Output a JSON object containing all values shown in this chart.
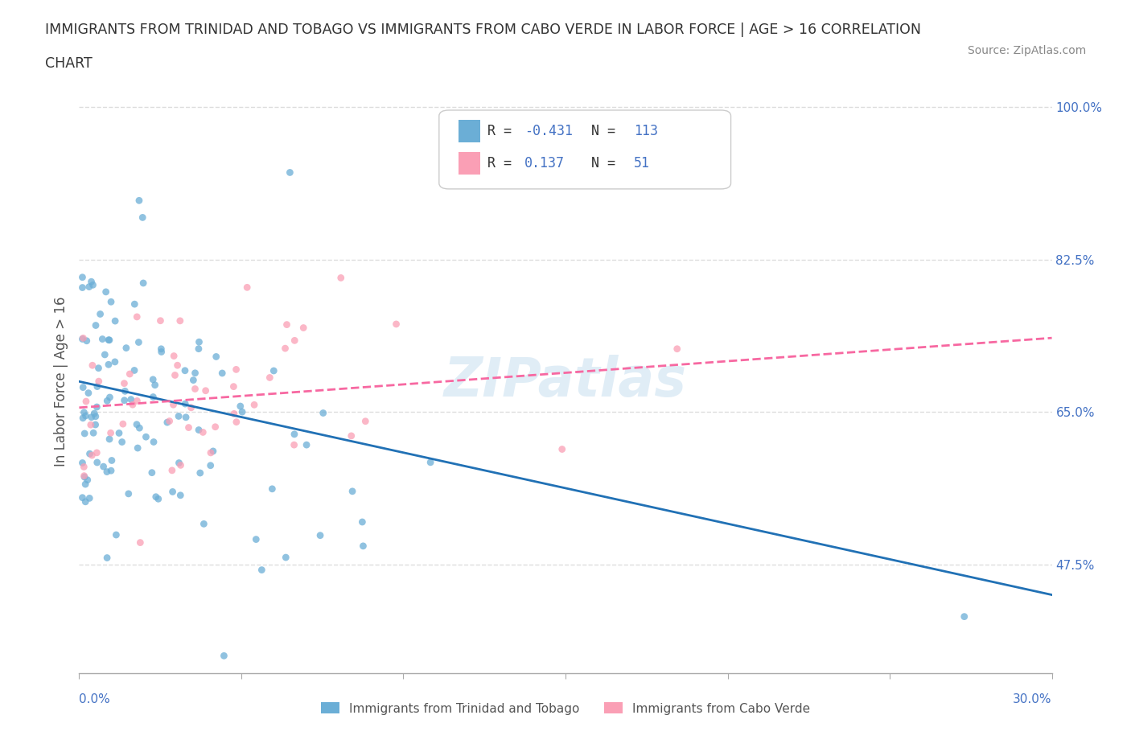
{
  "title_line1": "IMMIGRANTS FROM TRINIDAD AND TOBAGO VS IMMIGRANTS FROM CABO VERDE IN LABOR FORCE | AGE > 16 CORRELATION",
  "title_line2": "CHART",
  "source_text": "Source: ZipAtlas.com",
  "r_tt": -0.431,
  "n_tt": 113,
  "r_cv": 0.137,
  "n_cv": 51,
  "color_tt": "#6baed6",
  "color_cv": "#fa9fb5",
  "trend_color_tt": "#2171b5",
  "trend_color_cv": "#f768a1",
  "xlim": [
    0.0,
    0.3
  ],
  "ylim": [
    0.35,
    1.02
  ],
  "ylabel": "In Labor Force | Age > 16",
  "ytick_positions": [
    0.475,
    0.65,
    0.825,
    1.0
  ],
  "ytick_labels": [
    "47.5%",
    "65.0%",
    "82.5%",
    "100.0%"
  ],
  "watermark": "ZIPatlas",
  "legend_label_tt": "Immigrants from Trinidad and Tobago",
  "legend_label_cv": "Immigrants from Cabo Verde",
  "background_color": "#ffffff",
  "grid_color": "#dddddd"
}
